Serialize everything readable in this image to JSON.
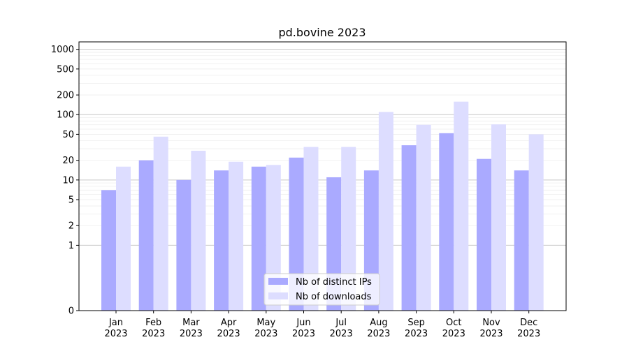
{
  "chart_data": {
    "type": "bar",
    "title": "pd.bovine 2023",
    "xlabel": "",
    "ylabel": "",
    "categories": [
      [
        "Jan",
        "2023"
      ],
      [
        "Feb",
        "2023"
      ],
      [
        "Mar",
        "2023"
      ],
      [
        "Apr",
        "2023"
      ],
      [
        "May",
        "2023"
      ],
      [
        "Jun",
        "2023"
      ],
      [
        "Jul",
        "2023"
      ],
      [
        "Aug",
        "2023"
      ],
      [
        "Sep",
        "2023"
      ],
      [
        "Oct",
        "2023"
      ],
      [
        "Nov",
        "2023"
      ],
      [
        "Dec",
        "2023"
      ]
    ],
    "series": [
      {
        "name": "Nb of distinct IPs",
        "color": "#aaaaff",
        "values": [
          7,
          20,
          10,
          14,
          16,
          22,
          11,
          14,
          34,
          52,
          21,
          14
        ]
      },
      {
        "name": "Nb of downloads",
        "color": "#ddddff",
        "values": [
          16,
          46,
          28,
          19,
          17,
          32,
          32,
          110,
          70,
          158,
          71,
          50
        ]
      }
    ],
    "y_scale": "symlog",
    "ylim": [
      0,
      1300
    ],
    "yticks": [
      0,
      1,
      2,
      5,
      10,
      20,
      50,
      100,
      200,
      500,
      1000
    ],
    "grid": true,
    "legend_position": "bottom-center"
  }
}
